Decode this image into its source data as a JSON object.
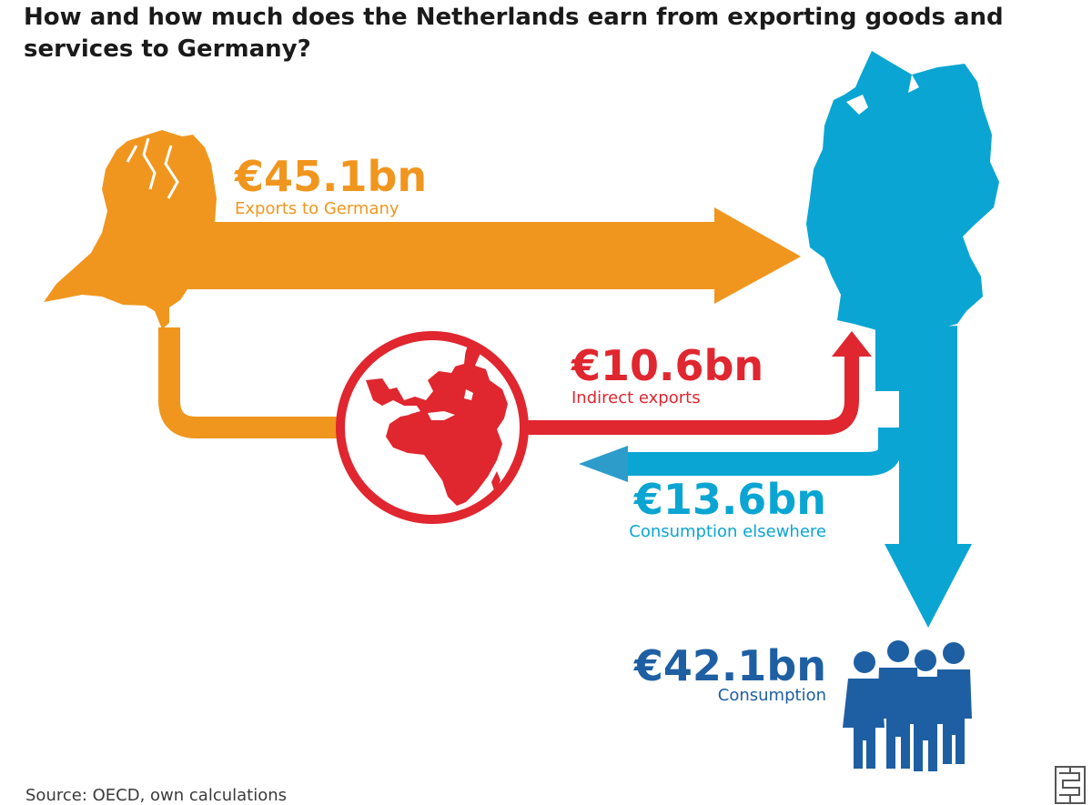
{
  "title": "How and how much does the Netherlands earn from exporting goods and services to Germany?",
  "flows": {
    "exports": {
      "value": "€45.1bn",
      "label": "Exports to Germany"
    },
    "indirect": {
      "value": "€10.6bn",
      "label": "Indirect exports"
    },
    "elsewhere": {
      "value": "€13.6bn",
      "label": "Consumption elsewhere"
    },
    "consumption": {
      "value": "€42.1bn",
      "label": "Consumption"
    }
  },
  "source": "Source: OECD, own calculations",
  "colors": {
    "orange": "#F0961E",
    "red": "#E0262F",
    "cyan": "#0AA5D2",
    "blue": "#1E5FA3",
    "light_blue": "#2D9CCB"
  },
  "icons": [
    "netherlands-map-icon",
    "germany-map-icon",
    "globe-icon",
    "people-group-icon",
    "cbs-logo-icon"
  ]
}
